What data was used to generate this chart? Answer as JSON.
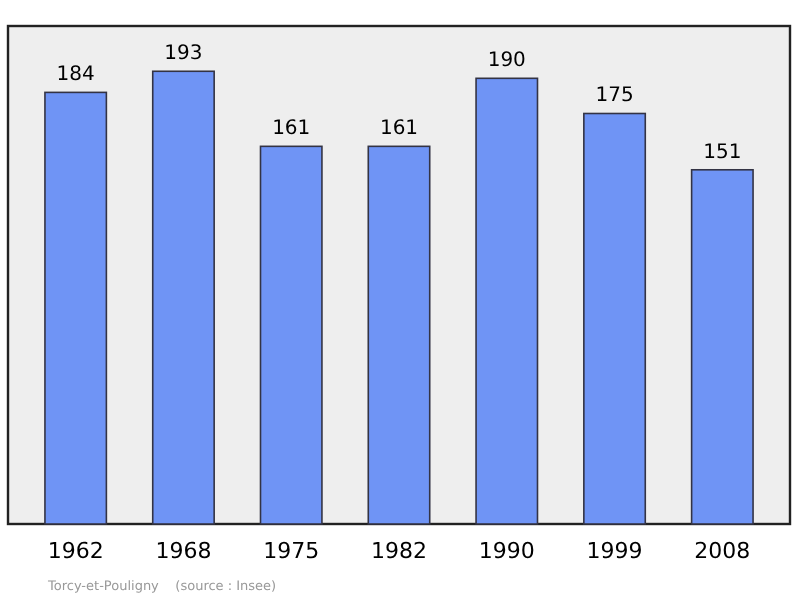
{
  "chart_data": {
    "type": "bar",
    "categories": [
      "1962",
      "1968",
      "1975",
      "1982",
      "1990",
      "1999",
      "2008"
    ],
    "values": [
      184,
      193,
      161,
      161,
      190,
      175,
      151
    ],
    "color": "#6f94f5",
    "data_labels": true,
    "annotations": [
      "Torcy-et-Pouligny    (source : Insee)"
    ]
  }
}
